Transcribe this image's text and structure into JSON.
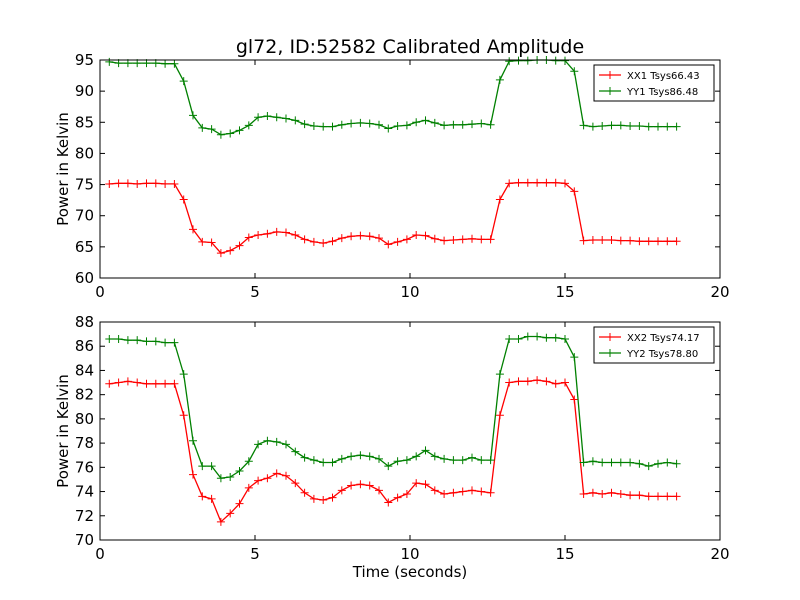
{
  "title": "gl72, ID:52582 Calibrated Amplitude",
  "chart_data": [
    {
      "type": "line",
      "ylabel": "Power in Kelvin",
      "xlabel": "",
      "xlim": [
        0,
        20
      ],
      "ylim": [
        60,
        95
      ],
      "xticks": [
        0,
        5,
        10,
        15,
        20
      ],
      "yticks": [
        60,
        65,
        70,
        75,
        80,
        85,
        90,
        95
      ],
      "legend_position": "top-right",
      "x": [
        0.3,
        0.6,
        0.9,
        1.2,
        1.5,
        1.8,
        2.1,
        2.4,
        2.7,
        3.0,
        3.3,
        3.6,
        3.9,
        4.2,
        4.5,
        4.8,
        5.1,
        5.4,
        5.7,
        6.0,
        6.3,
        6.6,
        6.9,
        7.2,
        7.5,
        7.8,
        8.1,
        8.4,
        8.7,
        9.0,
        9.3,
        9.6,
        9.9,
        10.2,
        10.5,
        10.8,
        11.1,
        11.4,
        11.7,
        12.0,
        12.3,
        12.6,
        12.9,
        13.2,
        13.5,
        13.8,
        14.1,
        14.4,
        14.7,
        15.0,
        15.3,
        15.6,
        15.9,
        16.2,
        16.5,
        16.8,
        17.1,
        17.4,
        17.7,
        18.0,
        18.3,
        18.6
      ],
      "series": [
        {
          "name": "XX1 Tsys66.43",
          "color": "#ff0000",
          "values": [
            75.1,
            75.2,
            75.2,
            75.1,
            75.2,
            75.2,
            75.1,
            75.1,
            72.6,
            67.8,
            65.8,
            65.7,
            64.0,
            64.4,
            65.2,
            66.5,
            66.9,
            67.1,
            67.4,
            67.3,
            66.9,
            66.2,
            65.8,
            65.6,
            65.9,
            66.4,
            66.7,
            66.8,
            66.7,
            66.4,
            65.4,
            65.8,
            66.2,
            66.9,
            66.8,
            66.3,
            66.0,
            66.1,
            66.2,
            66.3,
            66.2,
            66.2,
            72.6,
            75.2,
            75.3,
            75.3,
            75.3,
            75.3,
            75.3,
            75.2,
            73.9,
            66.0,
            66.1,
            66.1,
            66.1,
            66.0,
            66.0,
            65.9,
            65.9,
            65.9,
            65.9,
            65.9
          ]
        },
        {
          "name": "YY1 Tsys86.48",
          "color": "#008000",
          "values": [
            94.7,
            94.5,
            94.5,
            94.5,
            94.5,
            94.5,
            94.4,
            94.4,
            91.6,
            86.1,
            84.1,
            83.9,
            83.0,
            83.2,
            83.7,
            84.5,
            85.8,
            86.0,
            85.8,
            85.6,
            85.3,
            84.7,
            84.4,
            84.3,
            84.3,
            84.6,
            84.8,
            84.9,
            84.8,
            84.6,
            84.0,
            84.4,
            84.5,
            85.0,
            85.3,
            84.9,
            84.5,
            84.6,
            84.6,
            84.7,
            84.8,
            84.6,
            91.8,
            94.8,
            94.9,
            94.9,
            95.0,
            95.0,
            94.9,
            94.9,
            93.2,
            84.5,
            84.3,
            84.4,
            84.5,
            84.5,
            84.4,
            84.4,
            84.3,
            84.3,
            84.3,
            84.3
          ]
        }
      ]
    },
    {
      "type": "line",
      "ylabel": "Power in Kelvin",
      "xlabel": "Time (seconds)",
      "xlim": [
        0,
        20
      ],
      "ylim": [
        70,
        88
      ],
      "xticks": [
        0,
        5,
        10,
        15,
        20
      ],
      "yticks": [
        70,
        72,
        74,
        76,
        78,
        80,
        82,
        84,
        86,
        88
      ],
      "legend_position": "top-right",
      "x": [
        0.3,
        0.6,
        0.9,
        1.2,
        1.5,
        1.8,
        2.1,
        2.4,
        2.7,
        3.0,
        3.3,
        3.6,
        3.9,
        4.2,
        4.5,
        4.8,
        5.1,
        5.4,
        5.7,
        6.0,
        6.3,
        6.6,
        6.9,
        7.2,
        7.5,
        7.8,
        8.1,
        8.4,
        8.7,
        9.0,
        9.3,
        9.6,
        9.9,
        10.2,
        10.5,
        10.8,
        11.1,
        11.4,
        11.7,
        12.0,
        12.3,
        12.6,
        12.9,
        13.2,
        13.5,
        13.8,
        14.1,
        14.4,
        14.7,
        15.0,
        15.3,
        15.6,
        15.9,
        16.2,
        16.5,
        16.8,
        17.1,
        17.4,
        17.7,
        18.0,
        18.3,
        18.6
      ],
      "series": [
        {
          "name": "XX2 Tsys74.17",
          "color": "#ff0000",
          "values": [
            82.9,
            83.0,
            83.1,
            83.0,
            82.9,
            82.9,
            82.9,
            82.9,
            80.3,
            75.4,
            73.6,
            73.4,
            71.5,
            72.2,
            73.0,
            74.3,
            74.9,
            75.1,
            75.5,
            75.3,
            74.7,
            73.9,
            73.4,
            73.3,
            73.5,
            74.1,
            74.5,
            74.6,
            74.5,
            74.1,
            73.1,
            73.5,
            73.8,
            74.7,
            74.6,
            74.1,
            73.8,
            73.9,
            74.0,
            74.1,
            74.0,
            73.9,
            80.3,
            83.0,
            83.1,
            83.1,
            83.2,
            83.1,
            82.9,
            83.0,
            81.6,
            73.8,
            73.9,
            73.8,
            73.9,
            73.8,
            73.7,
            73.7,
            73.6,
            73.6,
            73.6,
            73.6
          ]
        },
        {
          "name": "YY2 Tsys78.80",
          "color": "#008000",
          "values": [
            86.6,
            86.6,
            86.5,
            86.5,
            86.4,
            86.4,
            86.3,
            86.3,
            83.7,
            78.2,
            76.1,
            76.1,
            75.1,
            75.2,
            75.7,
            76.5,
            77.9,
            78.2,
            78.1,
            77.9,
            77.3,
            76.8,
            76.6,
            76.4,
            76.4,
            76.7,
            76.9,
            77.0,
            76.9,
            76.7,
            76.1,
            76.5,
            76.6,
            76.9,
            77.4,
            76.9,
            76.7,
            76.6,
            76.6,
            76.8,
            76.6,
            76.6,
            83.7,
            86.6,
            86.6,
            86.8,
            86.8,
            86.7,
            86.7,
            86.6,
            85.1,
            76.4,
            76.5,
            76.4,
            76.4,
            76.4,
            76.4,
            76.3,
            76.1,
            76.3,
            76.4,
            76.3
          ]
        }
      ]
    }
  ]
}
